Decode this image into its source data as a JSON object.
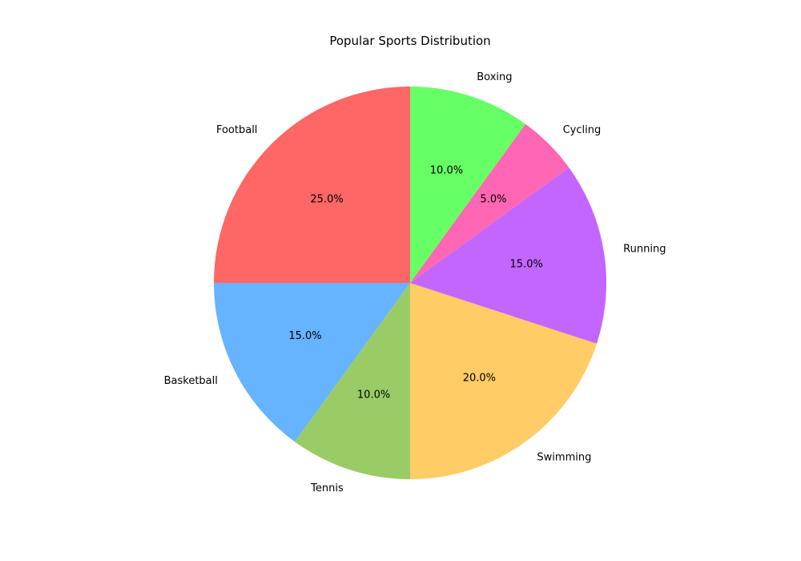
{
  "chart_data": {
    "type": "pie",
    "title": "Popular Sports Distribution",
    "start_angle_deg": 90,
    "direction": "counterclockwise",
    "slices": [
      {
        "label": "Football",
        "value": 25,
        "pct_label": "25.0%",
        "color": "#ff6666"
      },
      {
        "label": "Basketball",
        "value": 15,
        "pct_label": "15.0%",
        "color": "#66b3ff"
      },
      {
        "label": "Tennis",
        "value": 10,
        "pct_label": "10.0%",
        "color": "#99cc66"
      },
      {
        "label": "Swimming",
        "value": 20,
        "pct_label": "20.0%",
        "color": "#ffcc66"
      },
      {
        "label": "Running",
        "value": 15,
        "pct_label": "15.0%",
        "color": "#c266ff"
      },
      {
        "label": "Cycling",
        "value": 5,
        "pct_label": "5.0%",
        "color": "#ff66b3"
      },
      {
        "label": "Boxing",
        "value": 10,
        "pct_label": "10.0%",
        "color": "#66ff66"
      }
    ]
  }
}
